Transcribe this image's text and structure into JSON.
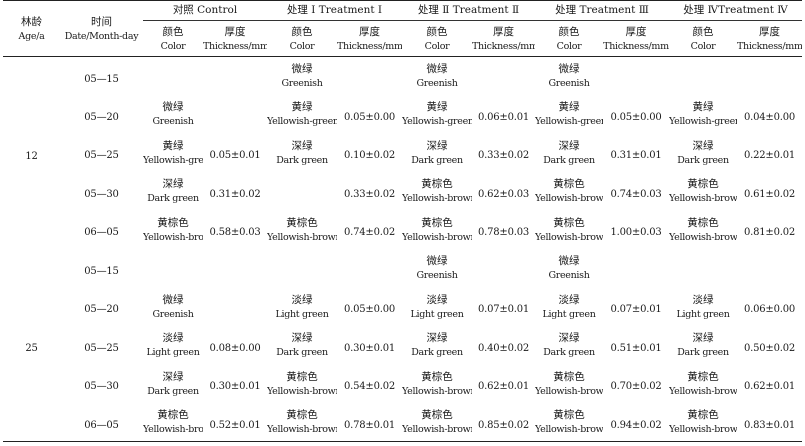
{
  "header": {
    "age": [
      "林龄",
      "Age/a"
    ],
    "date": [
      "时间",
      "Date/Month-day"
    ],
    "groups": [
      "对照 Control",
      "处理 Ⅰ Treatment Ⅰ",
      "处理 Ⅱ Treatment Ⅱ",
      "处理 Treatment Ⅲ",
      "处理 ⅣTreatment Ⅳ"
    ],
    "color": [
      "颜色",
      "Color"
    ],
    "thickness": [
      "厚度",
      "Thickness/mm"
    ]
  },
  "blocks": [
    {
      "age": "12",
      "rows": [
        {
          "date": "05—15",
          "cells": [
            [
              "",
              ""
            ],
            "",
            [
              "微绿",
              "Greenish"
            ],
            "",
            [
              "微绿",
              "Greenish"
            ],
            "",
            [
              "微绿",
              "Greenish"
            ],
            "",
            [
              "",
              ""
            ],
            ""
          ]
        },
        {
          "date": "05—20",
          "cells": [
            [
              "微绿",
              "Greenish"
            ],
            "",
            [
              "黄绿",
              "Yellowish-green"
            ],
            "0.05±0.00",
            [
              "黄绿",
              "Yellowish-green"
            ],
            "0.06±0.01",
            [
              "黄绿",
              "Yellowish-green"
            ],
            "0.05±0.00",
            [
              "黄绿",
              "Yellowish-green"
            ],
            "0.04±0.00"
          ]
        },
        {
          "date": "05—25",
          "cells": [
            [
              "黄绿",
              "Yellowish-green"
            ],
            "0.05±0.01",
            [
              "深绿",
              "Dark green"
            ],
            "0.10±0.02",
            [
              "深绿",
              "Dark green"
            ],
            "0.33±0.02",
            [
              "深绿",
              "Dark green"
            ],
            "0.31±0.01",
            [
              "深绿",
              "Dark green"
            ],
            "0.22±0.01"
          ]
        },
        {
          "date": "05—30",
          "cells": [
            [
              "深绿",
              "Dark green"
            ],
            "0.31±0.02",
            [
              "",
              ""
            ],
            "0.33±0.02",
            [
              "黄棕色",
              "Yellowish-brown"
            ],
            "0.62±0.03",
            [
              "黄棕色",
              "Yellowish-brown"
            ],
            "0.74±0.03",
            [
              "黄棕色",
              "Yellowish-brown"
            ],
            "0.61±0.02"
          ]
        },
        {
          "date": "06—05",
          "cells": [
            [
              "黄棕色",
              "Yellowish-brown"
            ],
            "0.58±0.03",
            [
              "黄棕色",
              "Yellowish-brown"
            ],
            "0.74±0.02",
            [
              "黄棕色",
              "Yellowish-brown"
            ],
            "0.78±0.03",
            [
              "黄棕色",
              "Yellowish-brown"
            ],
            "1.00±0.03",
            [
              "黄棕色",
              "Yellowish-brown"
            ],
            "0.81±0.02"
          ]
        }
      ]
    },
    {
      "age": "25",
      "rows": [
        {
          "date": "05—15",
          "cells": [
            [
              "",
              ""
            ],
            "",
            [
              "",
              ""
            ],
            "",
            [
              "微绿",
              "Greenish"
            ],
            "",
            [
              "微绿",
              "Greenish"
            ],
            "",
            [
              "",
              ""
            ],
            ""
          ]
        },
        {
          "date": "05—20",
          "cells": [
            [
              "微绿",
              "Greenish"
            ],
            "",
            [
              "淡绿",
              "Light green"
            ],
            "0.05±0.00",
            [
              "淡绿",
              "Light green"
            ],
            "0.07±0.01",
            [
              "淡绿",
              "Light green"
            ],
            "0.07±0.01",
            [
              "淡绿",
              "Light green"
            ],
            "0.06±0.00"
          ]
        },
        {
          "date": "05—25",
          "cells": [
            [
              "淡绿",
              "Light green"
            ],
            "0.08±0.00",
            [
              "深绿",
              "Dark green"
            ],
            "0.30±0.01",
            [
              "深绿",
              "Dark green"
            ],
            "0.40±0.02",
            [
              "深绿",
              "Dark green"
            ],
            "0.51±0.01",
            [
              "深绿",
              "Dark green"
            ],
            "0.50±0.02"
          ]
        },
        {
          "date": "05—30",
          "cells": [
            [
              "深绿",
              "Dark green"
            ],
            "0.30±0.01",
            [
              "黄棕色",
              "Yellowish-brown"
            ],
            "0.54±0.02",
            [
              "黄棕色",
              "Yellowish-brown"
            ],
            "0.62±0.01",
            [
              "黄棕色",
              "Yellowish-brown"
            ],
            "0.70±0.02",
            [
              "黄棕色",
              "Yellowish-brown"
            ],
            "0.62±0.01"
          ]
        },
        {
          "date": "06—05",
          "cells": [
            [
              "黄棕色",
              "Yellowish-brown"
            ],
            "0.52±0.01",
            [
              "黄棕色",
              "Yellowish-brown"
            ],
            "0.78±0.01",
            [
              "黄棕色",
              "Yellowish-brown"
            ],
            "0.85±0.02",
            [
              "黄棕色",
              "Yellowish-brown"
            ],
            "0.94±0.02",
            [
              "黄棕色",
              "Yellowish-brown"
            ],
            "0.83±0.01"
          ]
        }
      ]
    }
  ]
}
